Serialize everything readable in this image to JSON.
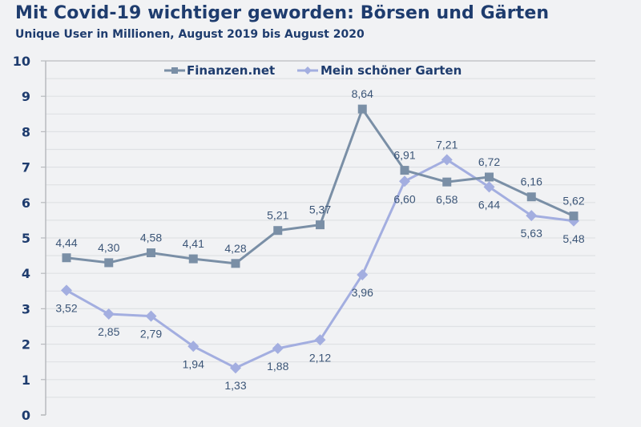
{
  "header": {
    "title": "Mit Covid-19 wichtiger geworden: Börsen und Gärten",
    "subtitle": "Unique User in Millionen, August 2019 bis August 2020"
  },
  "chart_data": {
    "type": "line",
    "title": "Mit Covid-19 wichtiger geworden: Börsen und Gärten",
    "subtitle": "Unique User in Millionen, August 2019 bis August 2020",
    "xlabel": "",
    "ylabel": "",
    "x": [
      1,
      2,
      3,
      4,
      5,
      6,
      7,
      8,
      9,
      10,
      11,
      12,
      13
    ],
    "ylim": [
      0,
      10
    ],
    "yticks": [
      "0",
      "1",
      "2",
      "3",
      "4",
      "5",
      "6",
      "7",
      "8",
      "9",
      "10"
    ],
    "grid": true,
    "legend_position": "top-center",
    "series": [
      {
        "name": "Finanzen.net",
        "color": "#7a8fa6",
        "marker": "square",
        "values": [
          4.44,
          4.3,
          4.58,
          4.41,
          4.28,
          5.21,
          5.37,
          8.64,
          6.91,
          6.58,
          6.72,
          6.16,
          5.62
        ],
        "labels": [
          "4,44",
          "4,30",
          "4,58",
          "4,41",
          "4,28",
          "5,21",
          "5,37",
          "8,64",
          "6,91",
          "6,58",
          "6,72",
          "6,16",
          "5,62"
        ],
        "label_pos": [
          "above",
          "above",
          "above",
          "above",
          "above",
          "above",
          "above",
          "above",
          "above",
          "below",
          "above",
          "above",
          "above"
        ]
      },
      {
        "name": "Mein schöner Garten",
        "color": "#a3aee0",
        "marker": "diamond",
        "values": [
          3.52,
          2.85,
          2.79,
          1.94,
          1.33,
          1.88,
          2.12,
          3.96,
          6.6,
          7.21,
          6.44,
          5.63,
          5.48
        ],
        "labels": [
          "3,52",
          "2,85",
          "2,79",
          "1,94",
          "1,33",
          "1,88",
          "2,12",
          "3,96",
          "6,60",
          "7,21",
          "6,44",
          "5,63",
          "5,48"
        ],
        "label_pos": [
          "below",
          "below",
          "below",
          "below",
          "below",
          "below",
          "below",
          "below",
          "below",
          "above",
          "below",
          "below",
          "below"
        ]
      }
    ]
  }
}
